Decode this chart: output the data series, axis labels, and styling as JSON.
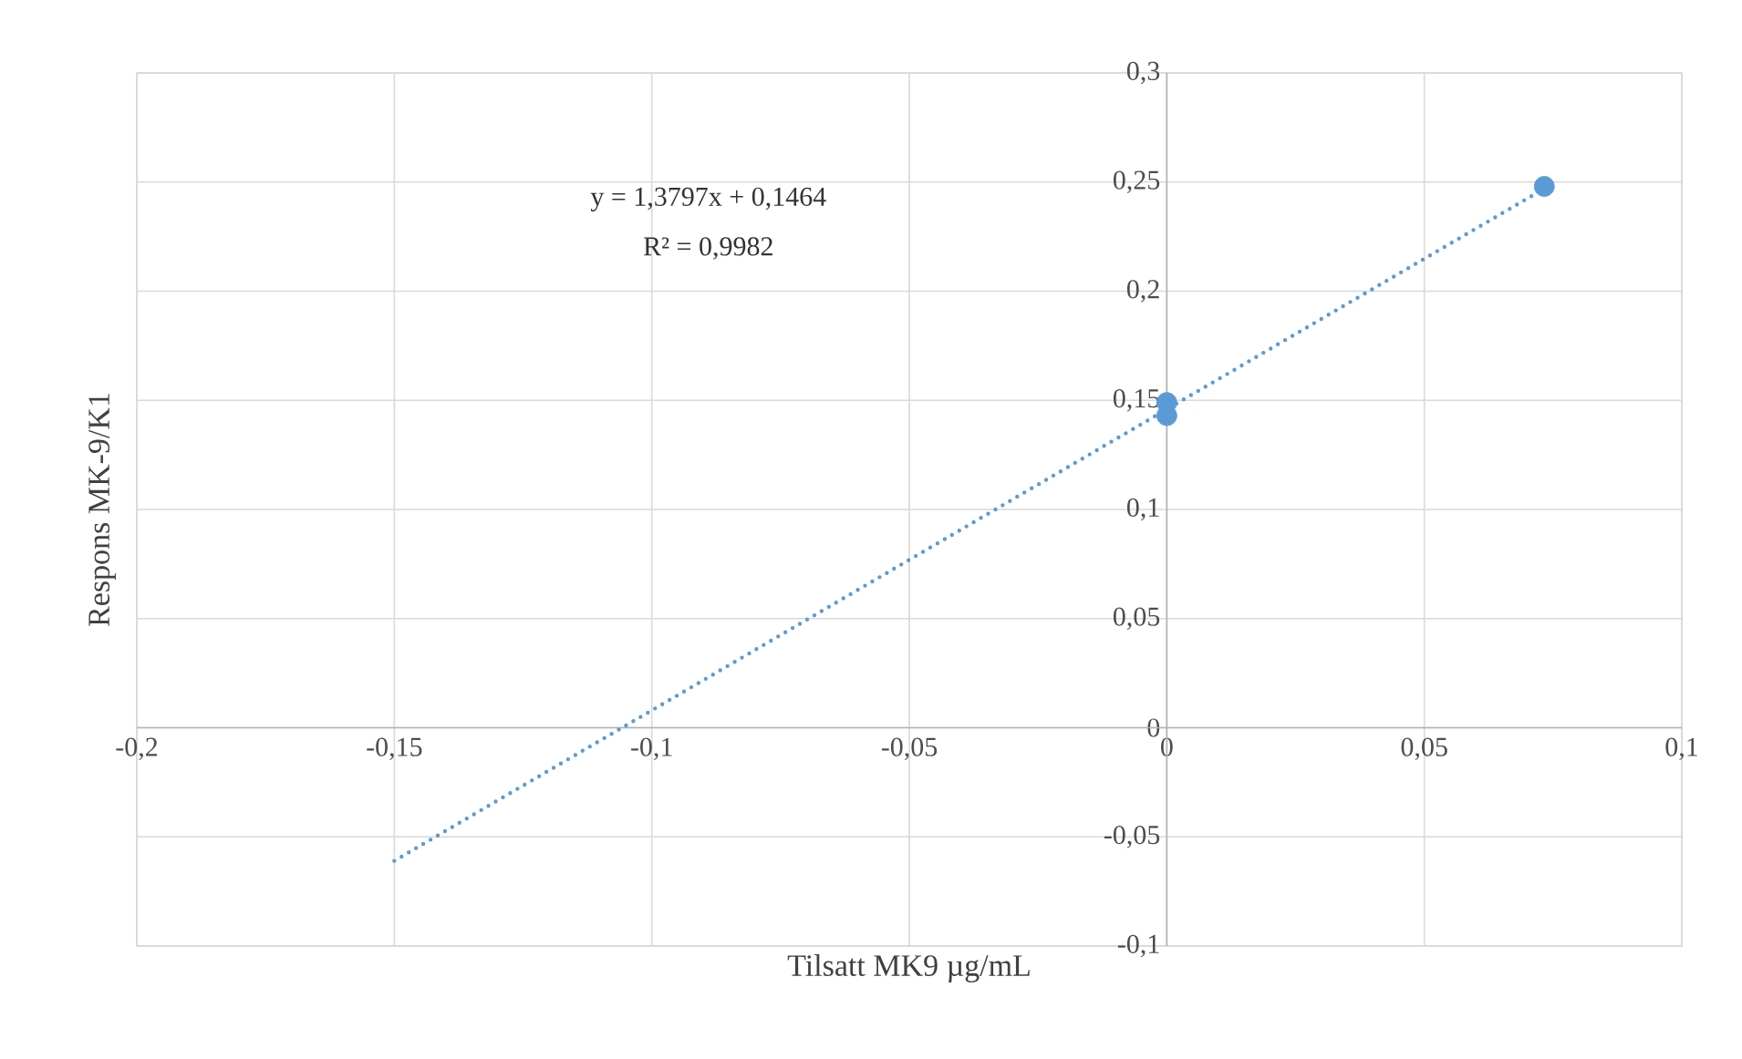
{
  "chart_data": {
    "type": "scatter",
    "xlabel": "Tilsatt MK9 µg/mL",
    "ylabel": "Respons MK-9/K1",
    "xlim": [
      -0.2,
      0.1
    ],
    "ylim": [
      -0.1,
      0.3
    ],
    "xticks": [
      {
        "value": -0.2,
        "label": "-0,2"
      },
      {
        "value": -0.15,
        "label": "-0,15"
      },
      {
        "value": -0.1,
        "label": "-0,1"
      },
      {
        "value": -0.05,
        "label": "-0,05"
      },
      0,
      {
        "value": 0.05,
        "label": "0,05"
      },
      {
        "value": 0.1,
        "label": "0,1"
      }
    ],
    "yticks": [
      {
        "value": -0.1,
        "label": "-0,1"
      },
      {
        "value": -0.05,
        "label": "-0,05"
      },
      0,
      {
        "value": 0.05,
        "label": "0,05"
      },
      {
        "value": 0.1,
        "label": "0,1"
      },
      {
        "value": 0.15,
        "label": "0,15"
      },
      {
        "value": 0.2,
        "label": "0,2"
      },
      {
        "value": 0.25,
        "label": "0,25"
      },
      {
        "value": 0.3,
        "label": "0,3"
      }
    ],
    "grid": true,
    "series": [
      {
        "color": "#5b9bd5",
        "marker": "circle",
        "x": [
          0,
          0,
          0.0733
        ],
        "values": [
          0.149,
          0.143,
          0.248
        ]
      },
      {
        "type": "line",
        "color": "#5b9bd5",
        "line_style": "dotted",
        "x": [
          -0.15,
          0.0733
        ],
        "values": [
          -0.061,
          0.247
        ]
      }
    ],
    "annotations": [
      "y = 1,3797x + 0,1464",
      "R² = 0,9982"
    ]
  }
}
